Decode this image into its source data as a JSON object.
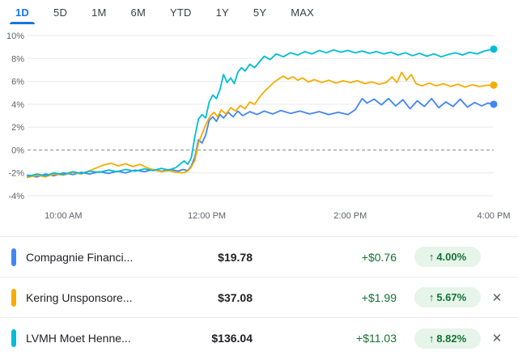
{
  "tabs": {
    "items": [
      {
        "label": "1D",
        "active": true
      },
      {
        "label": "5D",
        "active": false
      },
      {
        "label": "1M",
        "active": false
      },
      {
        "label": "6M",
        "active": false
      },
      {
        "label": "YTD",
        "active": false
      },
      {
        "label": "1Y",
        "active": false
      },
      {
        "label": "5Y",
        "active": false
      },
      {
        "label": "MAX",
        "active": false
      }
    ]
  },
  "chart_data": {
    "type": "line",
    "x_axis": {
      "range": [
        0,
        390
      ],
      "ticks": [
        {
          "t": 30,
          "label": "10:00 AM"
        },
        {
          "t": 150,
          "label": "12:00 PM"
        },
        {
          "t": 270,
          "label": "2:00 PM"
        },
        {
          "t": 390,
          "label": "4:00 PM"
        }
      ]
    },
    "y_axis": {
      "range": [
        -4,
        10
      ],
      "ticks": [
        {
          "v": 10,
          "label": "10%"
        },
        {
          "v": 8,
          "label": "8%"
        },
        {
          "v": 6,
          "label": "6%"
        },
        {
          "v": 4,
          "label": "4%"
        },
        {
          "v": 2,
          "label": "2%"
        },
        {
          "v": 0,
          "label": "0%"
        },
        {
          "v": -2,
          "label": "-2%"
        },
        {
          "v": -4,
          "label": "-4%"
        }
      ],
      "zero_line_dashed": true,
      "grid": true
    },
    "legend_position": "bottom",
    "series": [
      {
        "name": "Compagnie Financi...",
        "color": "#4285f4",
        "end_value_pct": 4.0,
        "points": [
          [
            0,
            -2.2
          ],
          [
            8,
            -2.35
          ],
          [
            15,
            -2.1
          ],
          [
            22,
            -2.25
          ],
          [
            30,
            -2.0
          ],
          [
            38,
            -2.15
          ],
          [
            45,
            -1.95
          ],
          [
            52,
            -2.1
          ],
          [
            60,
            -1.9
          ],
          [
            68,
            -2.05
          ],
          [
            75,
            -1.85
          ],
          [
            82,
            -2.0
          ],
          [
            90,
            -1.75
          ],
          [
            98,
            -1.9
          ],
          [
            105,
            -1.7
          ],
          [
            112,
            -1.85
          ],
          [
            120,
            -1.7
          ],
          [
            126,
            -1.85
          ],
          [
            130,
            -1.7
          ],
          [
            134,
            -1.8
          ],
          [
            137,
            -1.4
          ],
          [
            140,
            -0.6
          ],
          [
            143,
            0.9
          ],
          [
            146,
            0.6
          ],
          [
            149,
            1.3
          ],
          [
            152,
            2.6
          ],
          [
            155,
            2.9
          ],
          [
            158,
            2.5
          ],
          [
            161,
            3.1
          ],
          [
            164,
            2.8
          ],
          [
            168,
            3.3
          ],
          [
            172,
            2.9
          ],
          [
            176,
            3.4
          ],
          [
            180,
            3.0
          ],
          [
            186,
            3.35
          ],
          [
            192,
            3.1
          ],
          [
            198,
            3.4
          ],
          [
            205,
            3.15
          ],
          [
            212,
            3.45
          ],
          [
            220,
            3.2
          ],
          [
            228,
            3.4
          ],
          [
            236,
            3.15
          ],
          [
            244,
            3.35
          ],
          [
            252,
            3.1
          ],
          [
            260,
            3.3
          ],
          [
            268,
            3.1
          ],
          [
            274,
            3.5
          ],
          [
            280,
            4.5
          ],
          [
            284,
            4.1
          ],
          [
            290,
            4.45
          ],
          [
            296,
            3.95
          ],
          [
            302,
            4.5
          ],
          [
            308,
            3.85
          ],
          [
            314,
            4.4
          ],
          [
            320,
            3.6
          ],
          [
            326,
            4.3
          ],
          [
            332,
            3.8
          ],
          [
            338,
            4.5
          ],
          [
            344,
            3.7
          ],
          [
            350,
            4.2
          ],
          [
            356,
            3.8
          ],
          [
            362,
            4.45
          ],
          [
            368,
            3.75
          ],
          [
            374,
            4.15
          ],
          [
            380,
            3.85
          ],
          [
            385,
            4.1
          ],
          [
            390,
            4.0
          ]
        ]
      },
      {
        "name": "Kering Unsponsore...",
        "color": "#f9ab00",
        "end_value_pct": 5.67,
        "points": [
          [
            0,
            -2.4
          ],
          [
            8,
            -2.2
          ],
          [
            15,
            -2.35
          ],
          [
            22,
            -2.1
          ],
          [
            30,
            -2.2
          ],
          [
            38,
            -1.95
          ],
          [
            45,
            -2.1
          ],
          [
            52,
            -1.8
          ],
          [
            58,
            -1.55
          ],
          [
            64,
            -1.3
          ],
          [
            70,
            -1.15
          ],
          [
            76,
            -1.4
          ],
          [
            82,
            -1.2
          ],
          [
            88,
            -1.45
          ],
          [
            94,
            -1.25
          ],
          [
            100,
            -1.55
          ],
          [
            106,
            -1.75
          ],
          [
            112,
            -1.9
          ],
          [
            118,
            -1.8
          ],
          [
            124,
            -1.95
          ],
          [
            130,
            -2.0
          ],
          [
            134,
            -1.85
          ],
          [
            137,
            -1.5
          ],
          [
            140,
            -0.9
          ],
          [
            143,
            0.6
          ],
          [
            146,
            1.4
          ],
          [
            150,
            2.4
          ],
          [
            153,
            3.0
          ],
          [
            156,
            3.3
          ],
          [
            159,
            2.9
          ],
          [
            162,
            3.5
          ],
          [
            166,
            3.15
          ],
          [
            170,
            3.7
          ],
          [
            174,
            3.4
          ],
          [
            178,
            3.9
          ],
          [
            182,
            3.6
          ],
          [
            186,
            4.2
          ],
          [
            190,
            4.0
          ],
          [
            194,
            4.6
          ],
          [
            198,
            5.1
          ],
          [
            202,
            5.5
          ],
          [
            206,
            5.9
          ],
          [
            210,
            6.2
          ],
          [
            214,
            6.45
          ],
          [
            218,
            6.2
          ],
          [
            222,
            6.4
          ],
          [
            226,
            6.1
          ],
          [
            230,
            6.3
          ],
          [
            235,
            5.95
          ],
          [
            240,
            6.15
          ],
          [
            246,
            5.9
          ],
          [
            252,
            6.1
          ],
          [
            258,
            5.85
          ],
          [
            264,
            6.05
          ],
          [
            270,
            5.9
          ],
          [
            276,
            6.05
          ],
          [
            282,
            5.8
          ],
          [
            288,
            5.95
          ],
          [
            294,
            5.75
          ],
          [
            300,
            5.9
          ],
          [
            305,
            6.4
          ],
          [
            309,
            5.9
          ],
          [
            313,
            6.8
          ],
          [
            317,
            6.1
          ],
          [
            321,
            6.6
          ],
          [
            325,
            5.8
          ],
          [
            330,
            5.6
          ],
          [
            336,
            5.85
          ],
          [
            342,
            5.6
          ],
          [
            348,
            5.8
          ],
          [
            354,
            5.55
          ],
          [
            360,
            5.75
          ],
          [
            366,
            5.5
          ],
          [
            372,
            5.7
          ],
          [
            378,
            5.55
          ],
          [
            384,
            5.65
          ],
          [
            390,
            5.67
          ]
        ]
      },
      {
        "name": "LVMH Moet Henne...",
        "color": "#00bcd4",
        "end_value_pct": 8.82,
        "points": [
          [
            0,
            -2.3
          ],
          [
            8,
            -2.1
          ],
          [
            15,
            -2.25
          ],
          [
            22,
            -2.0
          ],
          [
            30,
            -2.15
          ],
          [
            38,
            -1.9
          ],
          [
            45,
            -2.05
          ],
          [
            52,
            -1.85
          ],
          [
            60,
            -1.95
          ],
          [
            68,
            -1.75
          ],
          [
            75,
            -1.9
          ],
          [
            82,
            -1.7
          ],
          [
            90,
            -1.85
          ],
          [
            98,
            -1.65
          ],
          [
            105,
            -1.8
          ],
          [
            112,
            -1.6
          ],
          [
            118,
            -1.75
          ],
          [
            124,
            -1.55
          ],
          [
            128,
            -1.2
          ],
          [
            131,
            -0.95
          ],
          [
            134,
            -1.25
          ],
          [
            137,
            -0.7
          ],
          [
            140,
            1.2
          ],
          [
            143,
            2.7
          ],
          [
            146,
            3.1
          ],
          [
            149,
            2.8
          ],
          [
            152,
            4.2
          ],
          [
            155,
            4.8
          ],
          [
            158,
            4.5
          ],
          [
            161,
            5.3
          ],
          [
            164,
            6.6
          ],
          [
            167,
            5.9
          ],
          [
            170,
            6.3
          ],
          [
            173,
            5.8
          ],
          [
            176,
            6.8
          ],
          [
            179,
            7.2
          ],
          [
            182,
            6.9
          ],
          [
            186,
            7.5
          ],
          [
            190,
            7.2
          ],
          [
            194,
            7.7
          ],
          [
            198,
            8.2
          ],
          [
            203,
            7.9
          ],
          [
            208,
            8.4
          ],
          [
            214,
            8.15
          ],
          [
            220,
            8.5
          ],
          [
            226,
            8.3
          ],
          [
            232,
            8.6
          ],
          [
            238,
            8.4
          ],
          [
            244,
            8.7
          ],
          [
            250,
            8.5
          ],
          [
            256,
            8.75
          ],
          [
            262,
            8.55
          ],
          [
            268,
            8.7
          ],
          [
            274,
            8.5
          ],
          [
            280,
            8.65
          ],
          [
            286,
            8.45
          ],
          [
            292,
            8.6
          ],
          [
            298,
            8.4
          ],
          [
            304,
            8.55
          ],
          [
            310,
            8.3
          ],
          [
            316,
            8.5
          ],
          [
            322,
            8.25
          ],
          [
            328,
            8.45
          ],
          [
            334,
            8.2
          ],
          [
            340,
            8.4
          ],
          [
            346,
            8.15
          ],
          [
            352,
            8.35
          ],
          [
            358,
            8.5
          ],
          [
            364,
            8.3
          ],
          [
            370,
            8.55
          ],
          [
            376,
            8.4
          ],
          [
            382,
            8.65
          ],
          [
            386,
            8.75
          ],
          [
            390,
            8.82
          ]
        ]
      }
    ]
  },
  "quotes": {
    "rows": [
      {
        "name": "Compagnie Financi...",
        "price": "$19.78",
        "change": "+$0.76",
        "arrow": "↑",
        "percent": "4.00%",
        "color": "#4285f4",
        "close_icon": "✕"
      },
      {
        "name": "Kering Unsponsore...",
        "price": "$37.08",
        "change": "+$1.99",
        "arrow": "↑",
        "percent": "5.67%",
        "color": "#f9ab00",
        "close_icon": "✕"
      },
      {
        "name": "LVMH Moet Henne...",
        "price": "$136.04",
        "change": "+$11.03",
        "arrow": "↑",
        "percent": "8.82%",
        "color": "#00bcd4",
        "close_icon": "✕"
      }
    ]
  },
  "colors": {
    "accent_blue": "#1a73e8",
    "positive_green": "#137333",
    "positive_badge_bg": "#e6f4ea",
    "grid_line": "#e8eaed",
    "zero_line": "#80868b",
    "axis_text": "#5f6368"
  }
}
